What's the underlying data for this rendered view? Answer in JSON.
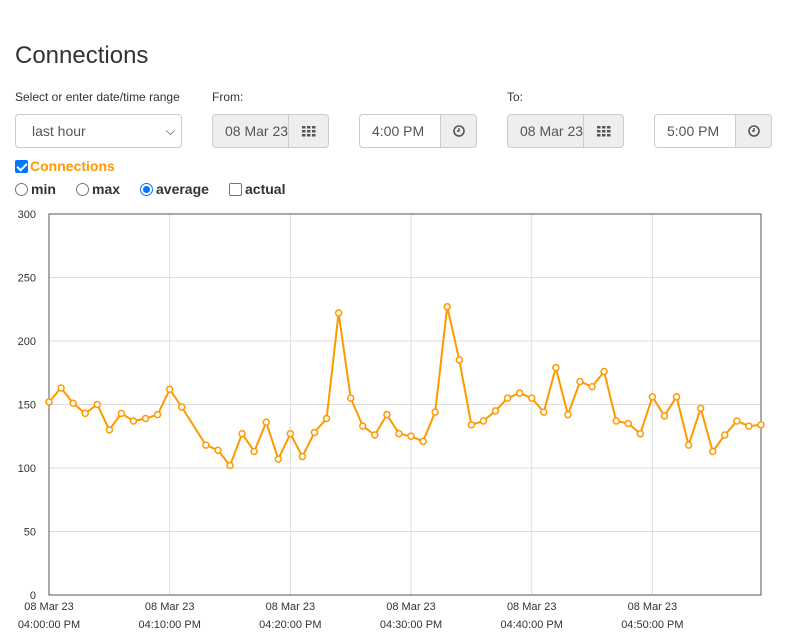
{
  "page": {
    "title": "Connections"
  },
  "range": {
    "label": "Select or enter date/time range",
    "selected": "last hour",
    "from_label": "From:",
    "from_date": "08 Mar 23",
    "from_time": "4:00 PM",
    "to_label": "To:",
    "to_date": "08 Mar 23",
    "to_time": "5:00 PM"
  },
  "series_toggle": {
    "label": "Connections",
    "checked": true
  },
  "modes": [
    {
      "label": "min",
      "selected": false
    },
    {
      "label": "max",
      "selected": false
    },
    {
      "label": "average",
      "selected": true
    },
    {
      "label": "actual",
      "selected": false,
      "kind": "checkbox"
    }
  ],
  "icons": {
    "calendar": "grid-calendar-icon",
    "clock": "clock-icon"
  },
  "colors": {
    "series": "#ff9900",
    "title": "#333333",
    "grid": "#dddddd"
  },
  "chart_data": {
    "type": "line",
    "ylim": [
      0,
      300
    ],
    "yticks": [
      0,
      50,
      100,
      150,
      200,
      250,
      300
    ],
    "xlim_minutes": [
      0,
      59
    ],
    "xticks": [
      {
        "date": "08 Mar 23",
        "time": "04:00:00 PM",
        "minute": 0
      },
      {
        "date": "08 Mar 23",
        "time": "04:10:00 PM",
        "minute": 10
      },
      {
        "date": "08 Mar 23",
        "time": "04:20:00 PM",
        "minute": 20
      },
      {
        "date": "08 Mar 23",
        "time": "04:30:00 PM",
        "minute": 30
      },
      {
        "date": "08 Mar 23",
        "time": "04:40:00 PM",
        "minute": 40
      },
      {
        "date": "08 Mar 23",
        "time": "04:50:00 PM",
        "minute": 50
      }
    ],
    "grid": true,
    "series": [
      {
        "name": "Connections",
        "x_minutes": [
          0,
          1,
          2,
          3,
          4,
          5,
          6,
          7,
          8,
          9,
          10,
          11,
          13,
          14,
          15,
          16,
          17,
          18,
          19,
          20,
          21,
          22,
          23,
          24,
          25,
          26,
          27,
          28,
          29,
          30,
          31,
          32,
          33,
          34,
          35,
          36,
          37,
          38,
          39,
          40,
          41,
          42,
          43,
          44,
          45,
          46,
          47,
          48,
          49,
          50,
          51,
          52,
          53,
          54,
          55,
          56,
          57,
          58,
          59
        ],
        "values": [
          152,
          163,
          151,
          143,
          150,
          130,
          143,
          137,
          139,
          142,
          162,
          148,
          118,
          114,
          102,
          127,
          113,
          136,
          107,
          127,
          109,
          128,
          139,
          222,
          155,
          133,
          126,
          142,
          127,
          125,
          121,
          144,
          227,
          185,
          134,
          137,
          145,
          155,
          159,
          155,
          144,
          179,
          142,
          168,
          164,
          176,
          137,
          135,
          127,
          156,
          141,
          156,
          118,
          147,
          113,
          126,
          137,
          133,
          134
        ]
      }
    ]
  }
}
